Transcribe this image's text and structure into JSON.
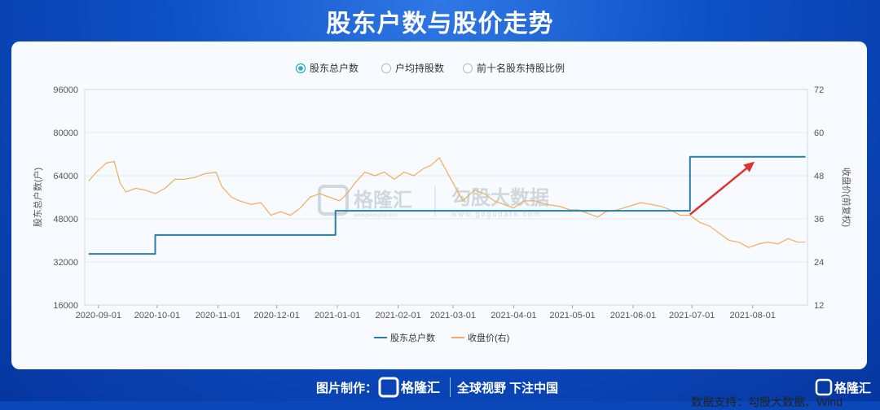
{
  "page": {
    "title": "股东户数与股价走势",
    "footer_made_by": "图片制作：",
    "footer_brand": "格隆汇",
    "footer_slogan": "全球视野 下注中国",
    "corner_brand": "格隆汇",
    "source": "数据支持：勾股大数据、Wind"
  },
  "watermarks": {
    "glh": "格隆汇",
    "glh_url": "www.gelonghui.com",
    "ggd": "勾股大数据",
    "ggd_url": "www.gogudata.com"
  },
  "colors": {
    "holders": "#2b7da7",
    "price": "#f0ad5a",
    "accent_radio": "#29a8c9",
    "arrow": "#e03030"
  },
  "top_legend": [
    {
      "label": "股东总户数",
      "selected": true
    },
    {
      "label": "户均持股数",
      "selected": false
    },
    {
      "label": "前十名股东持股比例",
      "selected": false
    }
  ],
  "chart_data": {
    "type": "line",
    "x_ticks": [
      "2020-09-01",
      "2020-10-01",
      "2020-11-01",
      "2020-12-01",
      "2021-01-01",
      "2021-02-01",
      "2021-03-01",
      "2021-04-01",
      "2021-05-01",
      "2021-06-01",
      "2021-07-01",
      "2021-08-01"
    ],
    "x_range": [
      "2020-08-25",
      "2021-08-29"
    ],
    "y_left": {
      "label": "股东总户数(户)",
      "ticks": [
        16000,
        32000,
        48000,
        64000,
        80000,
        96000
      ],
      "range": [
        16000,
        96000
      ]
    },
    "y_right": {
      "label": "收盘价(前复权)",
      "ticks": [
        12,
        24,
        36,
        48,
        60,
        72
      ],
      "range": [
        12,
        72
      ]
    },
    "series": [
      {
        "name": "股东总户数",
        "axis": "left",
        "step": true,
        "points": [
          [
            "2020-08-27",
            35000
          ],
          [
            "2020-09-30",
            35000
          ],
          [
            "2020-09-30",
            42000
          ],
          [
            "2020-12-31",
            42000
          ],
          [
            "2020-12-31",
            51000
          ],
          [
            "2021-06-30",
            51000
          ],
          [
            "2021-06-30",
            71000
          ],
          [
            "2021-08-28",
            71000
          ]
        ]
      },
      {
        "name": "收盘价(右)",
        "axis": "right",
        "step": false,
        "points": [
          [
            "2020-08-27",
            46.5
          ],
          [
            "2020-08-31",
            49
          ],
          [
            "2020-09-05",
            51.5
          ],
          [
            "2020-09-09",
            52
          ],
          [
            "2020-09-12",
            46
          ],
          [
            "2020-09-15",
            43.5
          ],
          [
            "2020-09-20",
            44.5
          ],
          [
            "2020-09-25",
            44
          ],
          [
            "2020-09-30",
            43
          ],
          [
            "2020-10-05",
            44.5
          ],
          [
            "2020-10-10",
            47
          ],
          [
            "2020-10-15",
            47
          ],
          [
            "2020-10-20",
            47.5
          ],
          [
            "2020-10-25",
            48.5
          ],
          [
            "2020-10-31",
            49
          ],
          [
            "2020-11-03",
            45
          ],
          [
            "2020-11-08",
            42
          ],
          [
            "2020-11-12",
            41
          ],
          [
            "2020-11-18",
            40
          ],
          [
            "2020-11-23",
            40.5
          ],
          [
            "2020-11-28",
            37
          ],
          [
            "2020-12-03",
            38
          ],
          [
            "2020-12-08",
            37
          ],
          [
            "2020-12-13",
            39
          ],
          [
            "2020-12-18",
            42
          ],
          [
            "2020-12-23",
            43
          ],
          [
            "2020-12-28",
            42
          ],
          [
            "2021-01-02",
            41
          ],
          [
            "2021-01-06",
            43
          ],
          [
            "2021-01-10",
            46
          ],
          [
            "2021-01-15",
            49
          ],
          [
            "2021-01-20",
            48
          ],
          [
            "2021-01-25",
            49
          ],
          [
            "2021-01-30",
            47
          ],
          [
            "2021-02-04",
            49
          ],
          [
            "2021-02-09",
            48
          ],
          [
            "2021-02-14",
            50
          ],
          [
            "2021-02-18",
            51
          ],
          [
            "2021-02-22",
            53
          ],
          [
            "2021-02-25",
            50
          ],
          [
            "2021-03-01",
            46
          ],
          [
            "2021-03-06",
            41
          ],
          [
            "2021-03-12",
            44
          ],
          [
            "2021-03-17",
            43
          ],
          [
            "2021-03-22",
            41
          ],
          [
            "2021-03-27",
            40
          ],
          [
            "2021-04-01",
            39
          ],
          [
            "2021-04-06",
            41
          ],
          [
            "2021-04-12",
            41
          ],
          [
            "2021-04-18",
            40
          ],
          [
            "2021-04-24",
            39.5
          ],
          [
            "2021-04-30",
            38.5
          ],
          [
            "2021-05-04",
            38.5
          ],
          [
            "2021-05-09",
            37.5
          ],
          [
            "2021-05-14",
            36.5
          ],
          [
            "2021-05-18",
            38
          ],
          [
            "2021-05-24",
            38.5
          ],
          [
            "2021-05-30",
            39.5
          ],
          [
            "2021-06-05",
            40.5
          ],
          [
            "2021-06-10",
            40
          ],
          [
            "2021-06-15",
            39.5
          ],
          [
            "2021-06-20",
            38.5
          ],
          [
            "2021-06-25",
            37
          ],
          [
            "2021-06-30",
            37
          ],
          [
            "2021-07-05",
            35
          ],
          [
            "2021-07-10",
            34
          ],
          [
            "2021-07-15",
            32
          ],
          [
            "2021-07-20",
            30
          ],
          [
            "2021-07-25",
            29.5
          ],
          [
            "2021-07-30",
            28
          ],
          [
            "2021-08-04",
            29
          ],
          [
            "2021-08-09",
            29.5
          ],
          [
            "2021-08-14",
            29
          ],
          [
            "2021-08-19",
            30.5
          ],
          [
            "2021-08-24",
            29.5
          ],
          [
            "2021-08-28",
            29.5
          ]
        ]
      }
    ],
    "bottom_legend": [
      "股东总户数",
      "收盘价(右)"
    ]
  }
}
